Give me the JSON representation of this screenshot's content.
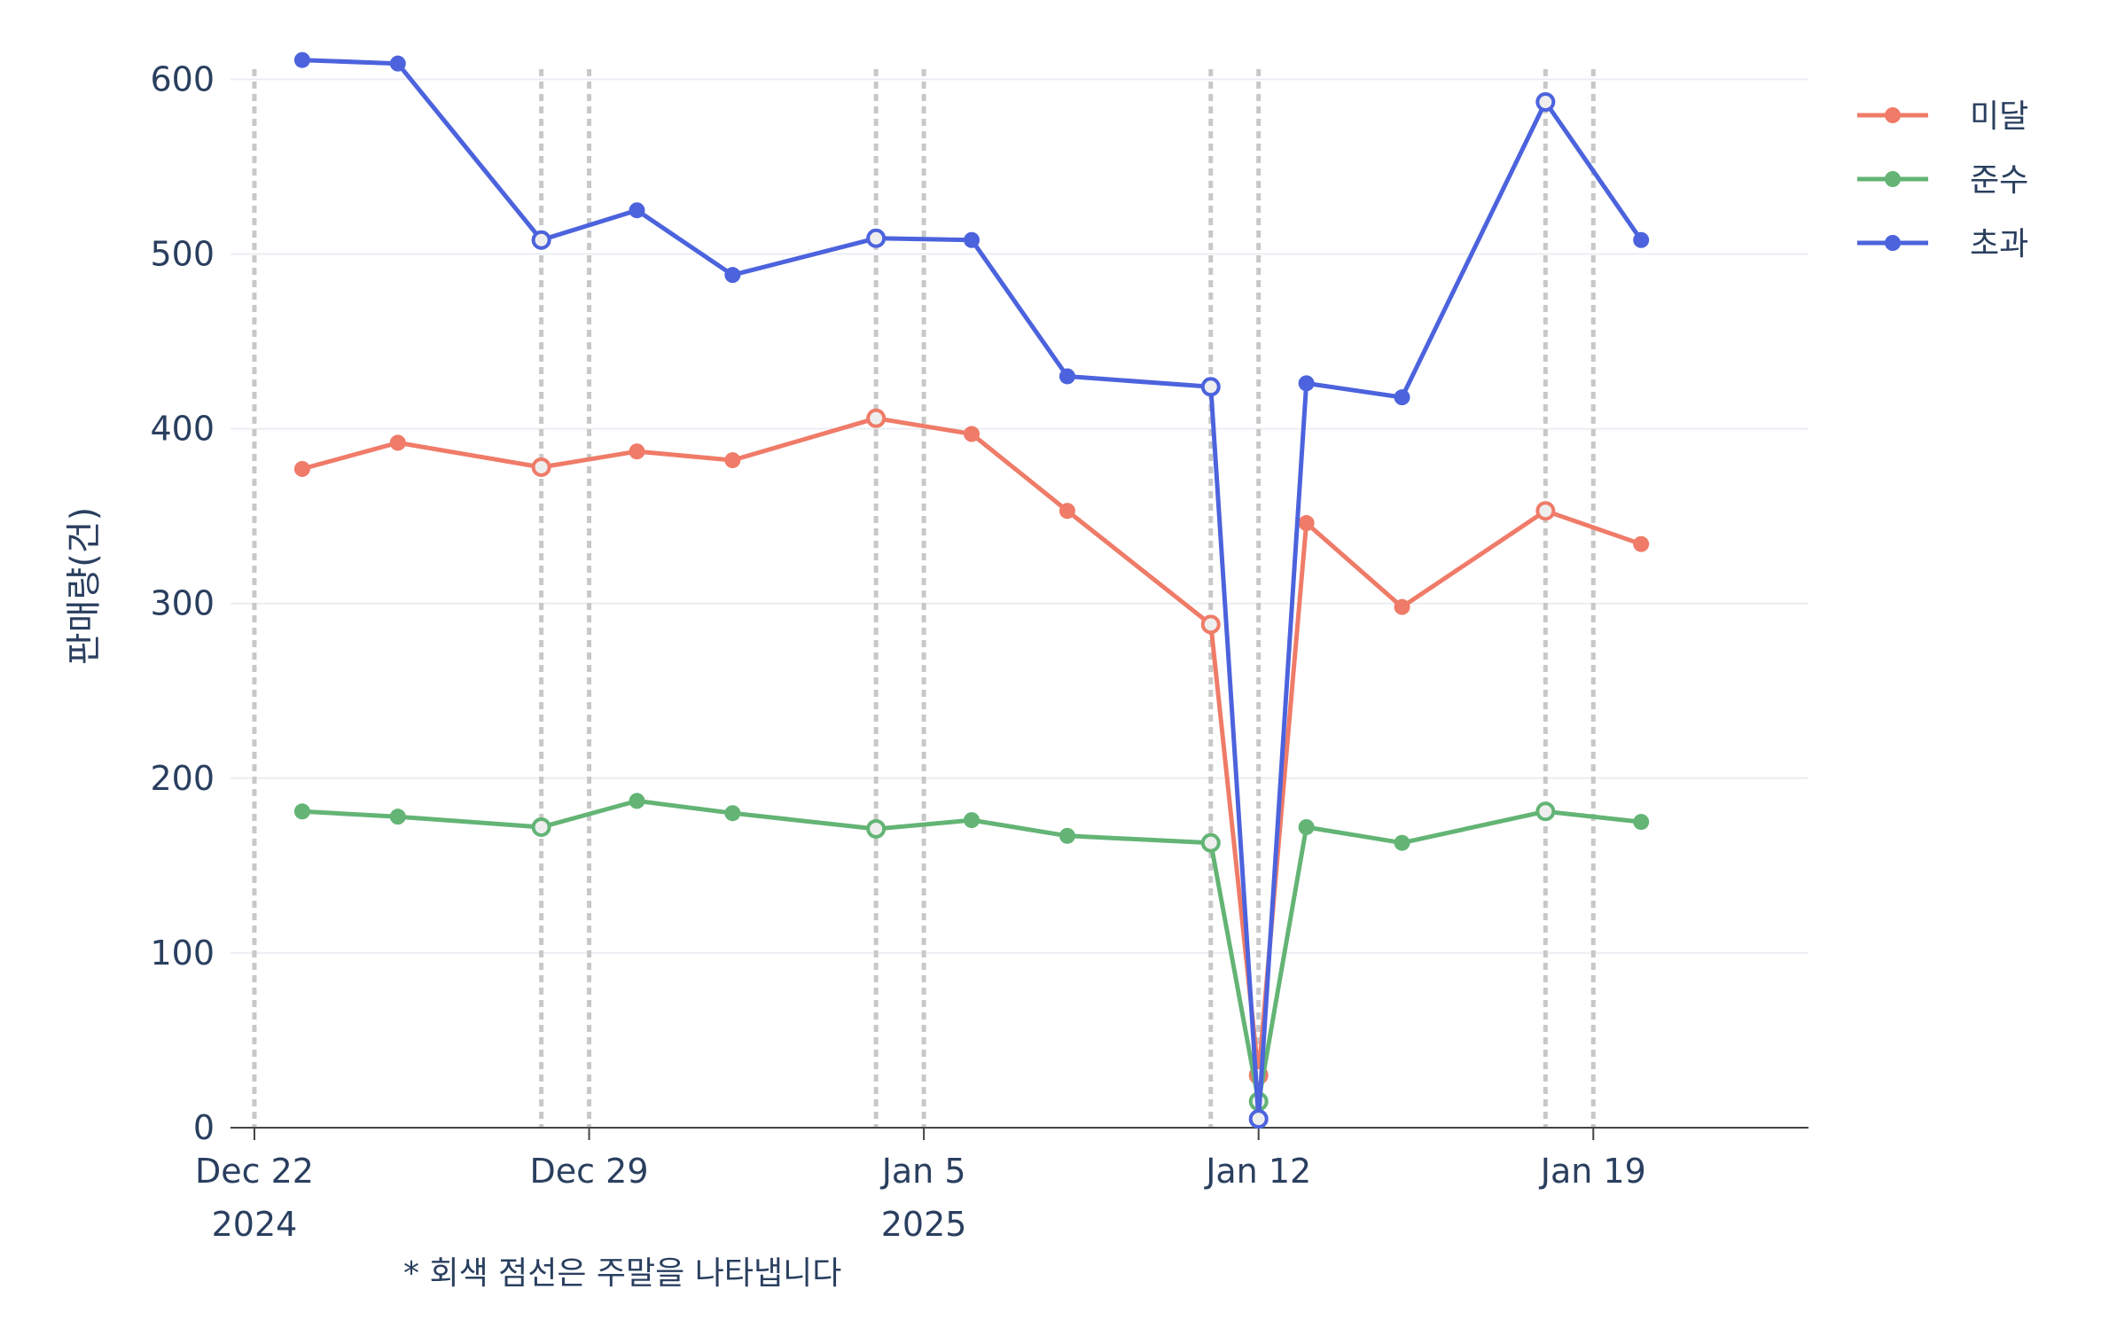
{
  "chart_data": {
    "type": "line",
    "ylabel": "판매량(건)",
    "xlabel": "",
    "ylim": [
      0,
      620
    ],
    "yticks": [
      0,
      100,
      200,
      300,
      400,
      500,
      600
    ],
    "x_ticks": [
      {
        "date": "2024-12-22",
        "label": "Dec 22",
        "sublabel": "2024"
      },
      {
        "date": "2024-12-29",
        "label": "Dec 29",
        "sublabel": ""
      },
      {
        "date": "2025-01-05",
        "label": "Jan 5",
        "sublabel": "2025"
      },
      {
        "date": "2025-01-12",
        "label": "Jan 12",
        "sublabel": ""
      },
      {
        "date": "2025-01-19",
        "label": "Jan 19",
        "sublabel": ""
      }
    ],
    "x_range": [
      "2024-12-21T12:00",
      "2025-01-23T12:00"
    ],
    "weekend_lines": [
      "2024-12-22",
      "2024-12-28",
      "2024-12-29",
      "2025-01-04",
      "2025-01-05",
      "2025-01-11",
      "2025-01-12",
      "2025-01-18",
      "2025-01-19"
    ],
    "x": [
      "2024-12-23",
      "2024-12-25",
      "2024-12-28",
      "2024-12-30",
      "2025-01-01",
      "2025-01-04",
      "2025-01-06",
      "2025-01-08",
      "2025-01-11",
      "2025-01-12",
      "2025-01-13",
      "2025-01-15",
      "2025-01-18",
      "2025-01-20"
    ],
    "series": [
      {
        "name": "미달",
        "color": "#EF7B68",
        "values": [
          377,
          392,
          378,
          387,
          382,
          406,
          397,
          353,
          288,
          30,
          346,
          298,
          353,
          334
        ]
      },
      {
        "name": "준수",
        "color": "#63B475",
        "values": [
          181,
          178,
          172,
          187,
          180,
          171,
          176,
          167,
          163,
          15,
          172,
          163,
          181,
          175
        ]
      },
      {
        "name": "초과",
        "color": "#4C63DD",
        "values": [
          611,
          609,
          508,
          525,
          488,
          509,
          508,
          430,
          424,
          5,
          426,
          418,
          587,
          508
        ]
      }
    ],
    "grid": true,
    "legend_position": "top-right",
    "annotation": "* 회색 점선은 주말을 나타냅니다"
  }
}
